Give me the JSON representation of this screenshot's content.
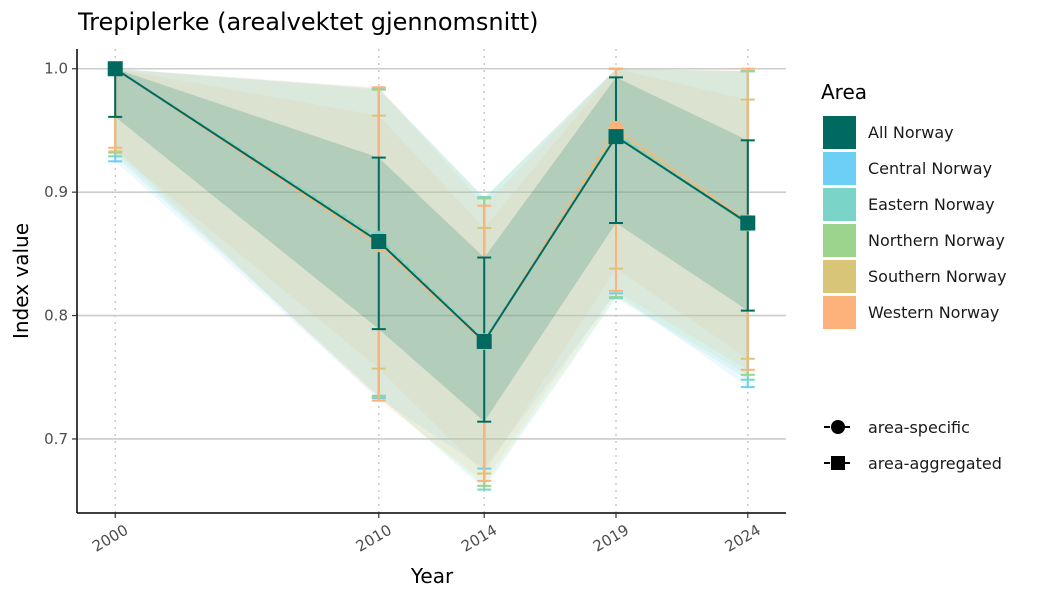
{
  "chart_data": {
    "type": "line",
    "title": "Trepiplerke (arealvektet gjennomsnitt)",
    "xlabel": "Year",
    "ylabel": "Index value",
    "x": [
      2000,
      2010,
      2014,
      2019,
      2024
    ],
    "xlim": [
      1998.55,
      2025.45
    ],
    "ylim": [
      0.64,
      1.016
    ],
    "yticks": [
      0.7,
      0.8,
      0.9,
      1.0
    ],
    "ytick_labels": [
      "0.7",
      "0.8",
      "0.9",
      "1.0"
    ],
    "xtick_labels": [
      "2000",
      "2010",
      "2014",
      "2019",
      "2024"
    ],
    "grid": "horizontal major lines; dotted vertical lines at data years",
    "legend_title": "Area",
    "series": [
      {
        "name": "All Norway",
        "color": "#006960",
        "marker": "square",
        "type": "area-aggregated",
        "values": [
          1.0,
          0.86,
          0.779,
          0.945,
          0.875
        ],
        "lower": [
          0.961,
          0.789,
          0.714,
          0.875,
          0.804
        ],
        "upper": [
          1.0,
          0.928,
          0.847,
          0.993,
          0.942
        ]
      },
      {
        "name": "Central Norway",
        "color": "#6DCFF6",
        "marker": "circle",
        "type": "area-specific",
        "values": [
          1.0,
          0.862,
          0.779,
          0.948,
          0.874
        ],
        "lower": [
          0.925,
          0.733,
          0.676,
          0.818,
          0.742
        ],
        "upper": [
          1.0,
          0.984,
          0.895,
          1.0,
          0.998
        ]
      },
      {
        "name": "Eastern Norway",
        "color": "#7AD4C8",
        "marker": "circle",
        "type": "area-specific",
        "values": [
          1.0,
          0.863,
          0.78,
          0.946,
          0.874
        ],
        "lower": [
          0.929,
          0.735,
          0.659,
          0.814,
          0.748
        ],
        "upper": [
          1.0,
          0.984,
          0.896,
          1.0,
          0.998
        ]
      },
      {
        "name": "Northern Norway",
        "color": "#9CD48E",
        "marker": "circle",
        "type": "area-specific",
        "values": [
          1.0,
          0.861,
          0.779,
          0.947,
          0.874
        ],
        "lower": [
          0.932,
          0.734,
          0.662,
          0.815,
          0.752
        ],
        "upper": [
          1.0,
          0.983,
          0.895,
          1.0,
          0.998
        ]
      },
      {
        "name": "Southern Norway",
        "color": "#D9C578",
        "marker": "circle",
        "type": "area-specific",
        "values": [
          1.0,
          0.859,
          0.778,
          0.949,
          0.876
        ],
        "lower": [
          0.933,
          0.757,
          0.672,
          0.838,
          0.765
        ],
        "upper": [
          1.0,
          0.962,
          0.871,
          1.0,
          0.975
        ]
      },
      {
        "name": "Western Norway",
        "color": "#FDB27C",
        "marker": "circle",
        "type": "area-specific",
        "values": [
          1.0,
          0.857,
          0.778,
          0.952,
          0.876
        ],
        "lower": [
          0.936,
          0.731,
          0.666,
          0.82,
          0.756
        ],
        "upper": [
          1.0,
          0.985,
          0.889,
          1.0,
          1.0
        ]
      }
    ],
    "shape_legend": [
      {
        "label": "area-specific",
        "shape": "circle"
      },
      {
        "label": "area-aggregated",
        "shape": "square"
      }
    ]
  }
}
